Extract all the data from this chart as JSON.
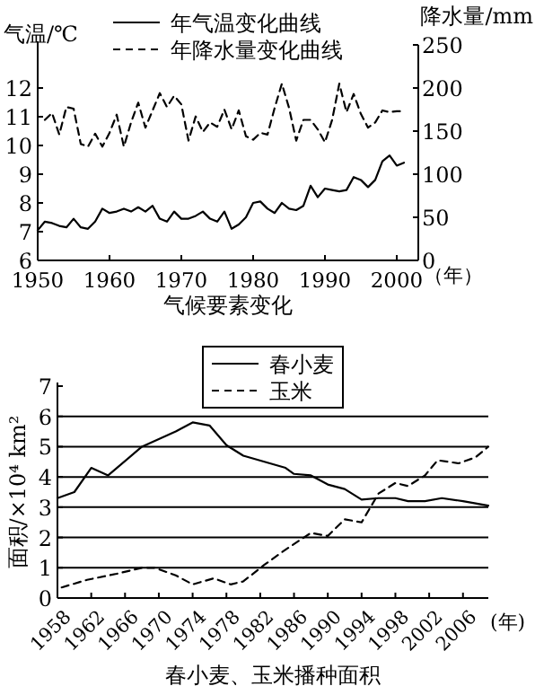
{
  "chart_data": [
    {
      "type": "line",
      "title": "气候要素变化",
      "xlabel": "（年）",
      "ylabel": "气温/℃",
      "y2label": "降水量/mm",
      "xlim": [
        1950,
        2003
      ],
      "xticks": [
        1950,
        1960,
        1970,
        1980,
        1990,
        2000
      ],
      "ylim": [
        6,
        13.5
      ],
      "yticks": [
        6,
        7,
        8,
        9,
        10,
        11,
        12
      ],
      "y2lim": [
        0,
        250
      ],
      "y2ticks": [
        0,
        50,
        100,
        150,
        200,
        250
      ],
      "legend": "top",
      "series": [
        {
          "name": "年气温变化曲线",
          "color": "#000000",
          "line_style": "solid",
          "x": [
            1950,
            1951,
            1952,
            1953,
            1954,
            1955,
            1956,
            1957,
            1958,
            1959,
            1960,
            1961,
            1962,
            1963,
            1964,
            1965,
            1966,
            1967,
            1968,
            1969,
            1970,
            1971,
            1972,
            1973,
            1974,
            1975,
            1976,
            1977,
            1978,
            1979,
            1980,
            1981,
            1982,
            1983,
            1984,
            1985,
            1986,
            1987,
            1988,
            1989,
            1990,
            1991,
            1992,
            1993,
            1994,
            1995,
            1996,
            1997,
            1998,
            1999,
            2000,
            2001
          ],
          "values": [
            7.05,
            7.35,
            7.3,
            7.2,
            7.15,
            7.45,
            7.15,
            7.1,
            7.35,
            7.8,
            7.65,
            7.7,
            7.8,
            7.7,
            7.85,
            7.7,
            7.9,
            7.45,
            7.35,
            7.7,
            7.45,
            7.45,
            7.55,
            7.7,
            7.45,
            7.35,
            7.7,
            7.1,
            7.25,
            7.5,
            8.0,
            8.05,
            7.8,
            7.65,
            8.0,
            7.8,
            7.75,
            7.9,
            8.6,
            8.2,
            8.5,
            8.45,
            8.4,
            8.45,
            8.9,
            8.8,
            8.55,
            8.8,
            9.45,
            9.65,
            9.3,
            9.4
          ]
        },
        {
          "name": "年降水量变化曲线",
          "color": "#000000",
          "line_style": "dashed",
          "axis": "y2",
          "x": [
            1951,
            1952,
            1953,
            1954,
            1955,
            1956,
            1957,
            1958,
            1959,
            1960,
            1961,
            1962,
            1963,
            1964,
            1965,
            1966,
            1967,
            1968,
            1969,
            1970,
            1971,
            1972,
            1973,
            1974,
            1975,
            1976,
            1977,
            1978,
            1979,
            1980,
            1981,
            1982,
            1983,
            1984,
            1985,
            1986,
            1987,
            1988,
            1989,
            1990,
            1991,
            1992,
            1993,
            1994,
            1995,
            1996,
            1997,
            1998,
            1999,
            2000,
            2001
          ],
          "values": [
            163,
            171,
            146,
            178,
            176,
            135,
            132,
            147,
            132,
            148,
            169,
            132,
            160,
            183,
            154,
            174,
            194,
            178,
            191,
            181,
            139,
            167,
            149,
            160,
            155,
            175,
            152,
            174,
            144,
            140,
            148,
            146,
            177,
            205,
            177,
            139,
            163,
            163,
            152,
            137,
            163,
            205,
            172,
            193,
            170,
            154,
            160,
            174,
            172,
            173,
            173
          ]
        }
      ]
    },
    {
      "type": "line",
      "title": "春小麦、玉米播种面积",
      "xlabel": "(年)",
      "ylabel": "面积/×10⁴ km²",
      "xlim": [
        1958,
        2009
      ],
      "xticks": [
        1958,
        1962,
        1966,
        1970,
        1974,
        1978,
        1982,
        1986,
        1990,
        1994,
        1998,
        2002,
        2006
      ],
      "ylim": [
        0,
        7
      ],
      "yticks": [
        0,
        1,
        2,
        3,
        4,
        5,
        6,
        7
      ],
      "grid": "y",
      "legend": "top",
      "series": [
        {
          "name": "春小麦",
          "color": "#000000",
          "line_style": "solid",
          "x": [
            1958,
            1960,
            1962,
            1964,
            1968,
            1972,
            1974,
            1976,
            1978,
            1980,
            1982.5,
            1985,
            1986,
            1988,
            1990,
            1992,
            1994,
            1996,
            1998,
            1999.5,
            2001.5,
            2003.5,
            2006,
            2009
          ],
          "values": [
            3.3,
            3.5,
            4.3,
            4.05,
            5.0,
            5.5,
            5.8,
            5.7,
            5.05,
            4.7,
            4.5,
            4.3,
            4.1,
            4.05,
            3.75,
            3.6,
            3.25,
            3.3,
            3.3,
            3.2,
            3.2,
            3.3,
            3.2,
            3.05
          ]
        },
        {
          "name": "玉米",
          "color": "#000000",
          "line_style": "dashed",
          "x": [
            1958.5,
            1961.5,
            1965,
            1968,
            1969.5,
            1972,
            1974,
            1976.5,
            1978.5,
            1980,
            1982.5,
            1985,
            1988,
            1990,
            1992,
            1994,
            1996,
            1998,
            1999.5,
            2001.5,
            2003,
            2005.5,
            2007.5,
            2009
          ],
          "values": [
            0.35,
            0.6,
            0.8,
            1.0,
            1.0,
            0.75,
            0.45,
            0.65,
            0.45,
            0.55,
            1.1,
            1.6,
            2.15,
            2.05,
            2.6,
            2.5,
            3.45,
            3.8,
            3.7,
            4.05,
            4.55,
            4.45,
            4.65,
            5.0
          ]
        }
      ]
    }
  ]
}
